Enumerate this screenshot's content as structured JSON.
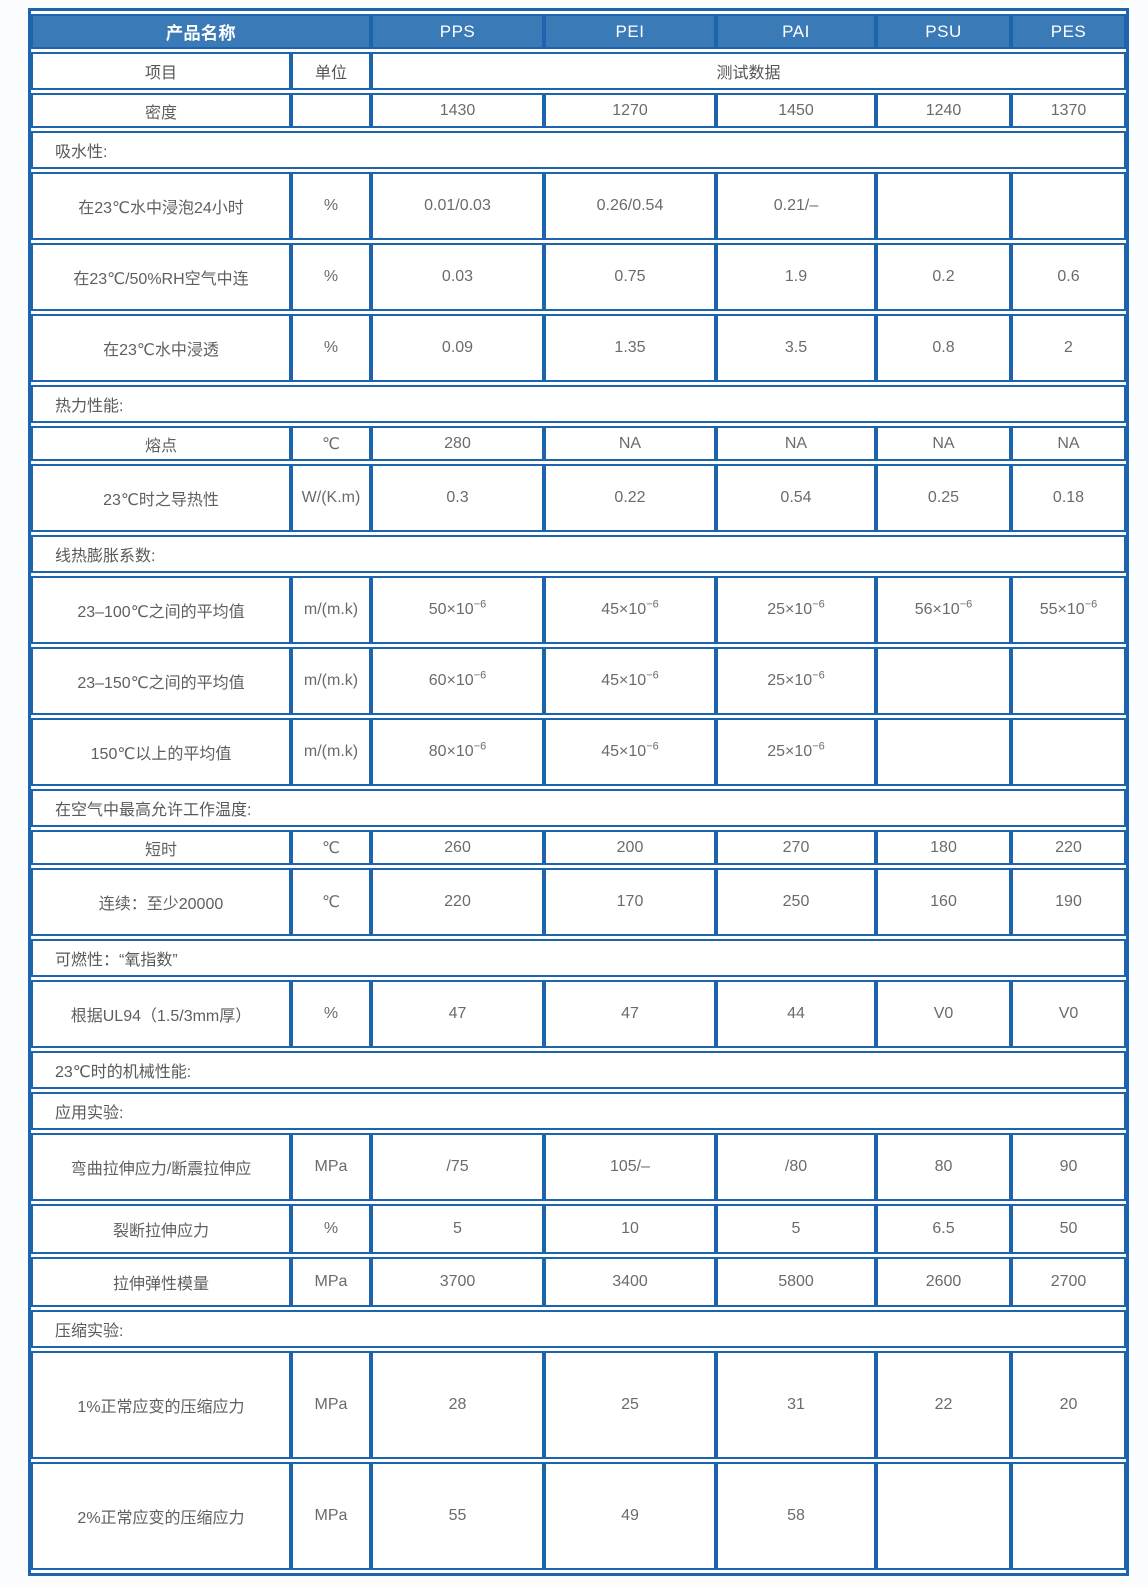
{
  "colors": {
    "header_bg": "#3a7ab7",
    "grid_border": "#1d64ad",
    "header_text": "#ffffff",
    "body_text": "#6b6b6b",
    "section_text": "#595959"
  },
  "table": {
    "header": {
      "product_label": "产品名称",
      "products": [
        "PPS",
        "PEI",
        "PAI",
        "PSU",
        "PES"
      ]
    },
    "subheader": {
      "item": "项目",
      "unit": "单位",
      "data": "测试数据"
    },
    "rows": [
      {
        "type": "data",
        "h": "s",
        "label": "密度",
        "unit": "",
        "values": [
          "1430",
          "1270",
          "1450",
          "1240",
          "1370"
        ]
      },
      {
        "type": "section",
        "label": "吸水性:"
      },
      {
        "type": "data",
        "h": "l",
        "label": "在23℃水中浸泡24小时",
        "unit": "%",
        "values": [
          "0.01/0.03",
          "0.26/0.54",
          "0.21/–",
          "",
          ""
        ]
      },
      {
        "type": "data",
        "h": "l",
        "label": "在23℃/50%RH空气中连",
        "unit": "%",
        "values": [
          "0.03",
          "0.75",
          "1.9",
          "0.2",
          "0.6"
        ]
      },
      {
        "type": "data",
        "h": "l",
        "label": "在23℃水中浸透",
        "unit": "%",
        "values": [
          "0.09",
          "1.35",
          "3.5",
          "0.8",
          "2"
        ]
      },
      {
        "type": "section",
        "label": "热力性能:"
      },
      {
        "type": "data",
        "h": "s",
        "label": "熔点",
        "unit": "℃",
        "values": [
          "280",
          "NA",
          "NA",
          "NA",
          "NA"
        ]
      },
      {
        "type": "data",
        "h": "l",
        "label": "23℃时之导热性",
        "unit": "W/(K.m)",
        "values": [
          "0.3",
          "0.22",
          "0.54",
          "0.25",
          "0.18"
        ]
      },
      {
        "type": "section",
        "label": "线热膨胀系数:"
      },
      {
        "type": "data",
        "h": "l",
        "label": "23–100℃之间的平均值",
        "unit": "m/(m.k)",
        "values": [
          "50×10^−6",
          "45×10^−6",
          "25×10^−6",
          "56×10^−6",
          "55×10^−6"
        ]
      },
      {
        "type": "data",
        "h": "l",
        "label": "23–150℃之间的平均值",
        "unit": "m/(m.k)",
        "values": [
          "60×10^−6",
          "45×10^−6",
          "25×10^−6",
          "",
          ""
        ]
      },
      {
        "type": "data",
        "h": "l",
        "label": "150℃以上的平均值",
        "unit": "m/(m.k)",
        "values": [
          "80×10^−6",
          "45×10^−6",
          "25×10^−6",
          "",
          ""
        ]
      },
      {
        "type": "section",
        "label": "在空气中最高允许工作温度:"
      },
      {
        "type": "data",
        "h": "s",
        "label": "短时",
        "unit": "℃",
        "values": [
          "260",
          "200",
          "270",
          "180",
          "220"
        ]
      },
      {
        "type": "data",
        "h": "l",
        "label": "连续：至少20000",
        "unit": "℃",
        "values": [
          "220",
          "170",
          "250",
          "160",
          "190"
        ]
      },
      {
        "type": "section",
        "label": "可燃性：“氧指数”"
      },
      {
        "type": "data",
        "h": "l",
        "label": "根据UL94（1.5/3mm厚）",
        "unit": "%",
        "values": [
          "47",
          "47",
          "44",
          "V0",
          "V0"
        ]
      },
      {
        "type": "section",
        "label": "23℃时的机械性能:"
      },
      {
        "type": "section",
        "label": "应用实验:"
      },
      {
        "type": "data",
        "h": "l",
        "label": "弯曲拉伸应力/断震拉伸应",
        "unit": "MPa",
        "values": [
          "/75",
          "105/–",
          "/80",
          "80",
          "90"
        ]
      },
      {
        "type": "data",
        "h": "m",
        "label": "裂断拉伸应力",
        "unit": "%",
        "values": [
          "5",
          "10",
          "5",
          "6.5",
          "50"
        ]
      },
      {
        "type": "data",
        "h": "m",
        "label": "拉伸弹性模量",
        "unit": "MPa",
        "values": [
          "3700",
          "3400",
          "5800",
          "2600",
          "2700"
        ]
      },
      {
        "type": "section",
        "label": "压缩实验:"
      },
      {
        "type": "data",
        "h": "xl",
        "label": "1%正常应变的压缩应力",
        "unit": "MPa",
        "values": [
          "28",
          "25",
          "31",
          "22",
          "20"
        ]
      },
      {
        "type": "data",
        "h": "xl",
        "label": "2%正常应变的压缩应力",
        "unit": "MPa",
        "values": [
          "55",
          "49",
          "58",
          "",
          ""
        ]
      }
    ]
  }
}
